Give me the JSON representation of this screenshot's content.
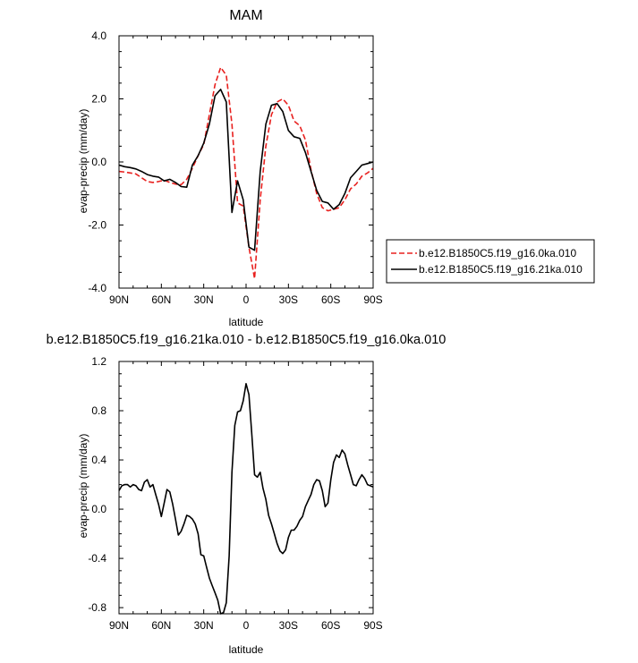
{
  "chart_data": [
    {
      "type": "line",
      "title": "MAM",
      "xlabel": "latitude",
      "ylabel": "evap-precip (mm/day)",
      "xlim": [
        90,
        -90
      ],
      "ylim": [
        -4.0,
        4.0
      ],
      "x_ticks": [
        {
          "value": 90,
          "label": "90N"
        },
        {
          "value": 60,
          "label": "60N"
        },
        {
          "value": 30,
          "label": "30N"
        },
        {
          "value": 0,
          "label": "0"
        },
        {
          "value": -30,
          "label": "30S"
        },
        {
          "value": -60,
          "label": "60S"
        },
        {
          "value": -90,
          "label": "90S"
        }
      ],
      "y_ticks": [
        {
          "value": 4.0,
          "label": "4.0"
        },
        {
          "value": 2.0,
          "label": "2.0"
        },
        {
          "value": 0.0,
          "label": "0.0"
        },
        {
          "value": -2.0,
          "label": "-2.0"
        },
        {
          "value": -4.0,
          "label": "-4.0"
        }
      ],
      "legend_position": "right",
      "series": [
        {
          "name": "b.e12.B1850C5.f19_g16.0ka.010",
          "color": "#e8201e",
          "dash": "dashed",
          "x": [
            90,
            86,
            82,
            78,
            74,
            70,
            66,
            62,
            58,
            54,
            50,
            46,
            42,
            38,
            34,
            30,
            26,
            22,
            18,
            14,
            10,
            6,
            2,
            -2,
            -6,
            -10,
            -14,
            -18,
            -22,
            -26,
            -30,
            -34,
            -38,
            -42,
            -46,
            -50,
            -54,
            -58,
            -62,
            -66,
            -70,
            -74,
            -78,
            -82,
            -86,
            -90
          ],
          "y": [
            -0.3,
            -0.32,
            -0.35,
            -0.38,
            -0.5,
            -0.62,
            -0.65,
            -0.62,
            -0.58,
            -0.65,
            -0.7,
            -0.72,
            -0.55,
            -0.2,
            0.2,
            0.55,
            1.5,
            2.45,
            3.0,
            2.75,
            1.2,
            -1.3,
            -1.4,
            -2.7,
            -3.7,
            -1.2,
            0.5,
            1.5,
            1.9,
            2.0,
            1.8,
            1.3,
            1.15,
            0.7,
            -0.25,
            -1.0,
            -1.45,
            -1.55,
            -1.5,
            -1.45,
            -1.2,
            -0.85,
            -0.7,
            -0.45,
            -0.35,
            -0.2
          ]
        },
        {
          "name": "b.e12.B1850C5.f19_g16.21ka.010",
          "color": "#000000",
          "dash": "solid",
          "x": [
            90,
            86,
            82,
            78,
            74,
            70,
            66,
            62,
            58,
            54,
            50,
            46,
            42,
            38,
            34,
            30,
            26,
            22,
            18,
            14,
            10,
            6,
            2,
            -2,
            -6,
            -10,
            -14,
            -18,
            -22,
            -26,
            -30,
            -34,
            -38,
            -42,
            -46,
            -50,
            -54,
            -58,
            -62,
            -66,
            -70,
            -74,
            -78,
            -82,
            -86,
            -90
          ],
          "y": [
            -0.1,
            -0.15,
            -0.18,
            -0.22,
            -0.3,
            -0.4,
            -0.45,
            -0.48,
            -0.6,
            -0.55,
            -0.65,
            -0.78,
            -0.8,
            -0.1,
            0.2,
            0.6,
            1.2,
            2.1,
            2.3,
            1.9,
            -1.6,
            -0.6,
            -1.2,
            -2.7,
            -2.8,
            -0.3,
            1.2,
            1.8,
            1.85,
            1.6,
            1.0,
            0.8,
            0.75,
            0.3,
            -0.3,
            -0.9,
            -1.25,
            -1.3,
            -1.5,
            -1.35,
            -1.0,
            -0.5,
            -0.3,
            -0.1,
            -0.05,
            0.0
          ]
        }
      ]
    },
    {
      "type": "line",
      "title": "b.e12.B1850C5.f19_g16.21ka.010 - b.e12.B1850C5.f19_g16.0ka.010",
      "xlabel": "latitude",
      "ylabel": "evap-precip (mm/day)",
      "xlim": [
        90,
        -90
      ],
      "ylim": [
        -0.85,
        1.2
      ],
      "x_ticks": [
        {
          "value": 90,
          "label": "90N"
        },
        {
          "value": 60,
          "label": "60N"
        },
        {
          "value": 30,
          "label": "30N"
        },
        {
          "value": 0,
          "label": "0"
        },
        {
          "value": -30,
          "label": "30S"
        },
        {
          "value": -60,
          "label": "60S"
        },
        {
          "value": -90,
          "label": "90S"
        }
      ],
      "y_ticks": [
        {
          "value": 1.2,
          "label": "1.2"
        },
        {
          "value": 0.8,
          "label": "0.8"
        },
        {
          "value": 0.4,
          "label": "0.4"
        },
        {
          "value": 0.0,
          "label": "0.0"
        },
        {
          "value": -0.4,
          "label": "-0.4"
        },
        {
          "value": -0.8,
          "label": "-0.8"
        }
      ],
      "series": [
        {
          "color": "#000000",
          "dash": "solid",
          "x": [
            90,
            88,
            86,
            84,
            82,
            80,
            78,
            76,
            74,
            72,
            70,
            68,
            66,
            64,
            62,
            60,
            58,
            56,
            54,
            52,
            50,
            48,
            46,
            44,
            42,
            40,
            38,
            36,
            34,
            32,
            30,
            28,
            26,
            24,
            22,
            20,
            18,
            16,
            14,
            12,
            10,
            8,
            6,
            4,
            2,
            0,
            -2,
            -4,
            -6,
            -8,
            -10,
            -12,
            -14,
            -16,
            -18,
            -20,
            -22,
            -24,
            -26,
            -28,
            -30,
            -32,
            -34,
            -36,
            -38,
            -40,
            -42,
            -44,
            -46,
            -48,
            -50,
            -52,
            -54,
            -56,
            -58,
            -60,
            -62,
            -64,
            -66,
            -68,
            -70,
            -72,
            -74,
            -76,
            -78,
            -80,
            -82,
            -84,
            -86,
            -88,
            -90
          ],
          "y": [
            0.15,
            0.19,
            0.2,
            0.2,
            0.18,
            0.2,
            0.19,
            0.16,
            0.15,
            0.22,
            0.24,
            0.18,
            0.2,
            0.12,
            0.04,
            -0.06,
            0.05,
            0.16,
            0.14,
            0.04,
            -0.08,
            -0.21,
            -0.18,
            -0.12,
            -0.05,
            -0.06,
            -0.08,
            -0.12,
            -0.2,
            -0.37,
            -0.38,
            -0.47,
            -0.56,
            -0.62,
            -0.68,
            -0.74,
            -0.85,
            -0.84,
            -0.76,
            -0.38,
            0.3,
            0.68,
            0.79,
            0.8,
            0.88,
            1.02,
            0.93,
            0.62,
            0.28,
            0.26,
            0.3,
            0.17,
            0.08,
            -0.05,
            -0.12,
            -0.2,
            -0.28,
            -0.34,
            -0.36,
            -0.33,
            -0.23,
            -0.17,
            -0.17,
            -0.14,
            -0.09,
            -0.06,
            0.02,
            0.07,
            0.12,
            0.2,
            0.24,
            0.23,
            0.15,
            0.02,
            0.05,
            0.24,
            0.38,
            0.44,
            0.42,
            0.48,
            0.45,
            0.36,
            0.28,
            0.2,
            0.19,
            0.24,
            0.28,
            0.25,
            0.2,
            0.19,
            0.18
          ]
        }
      ]
    }
  ]
}
